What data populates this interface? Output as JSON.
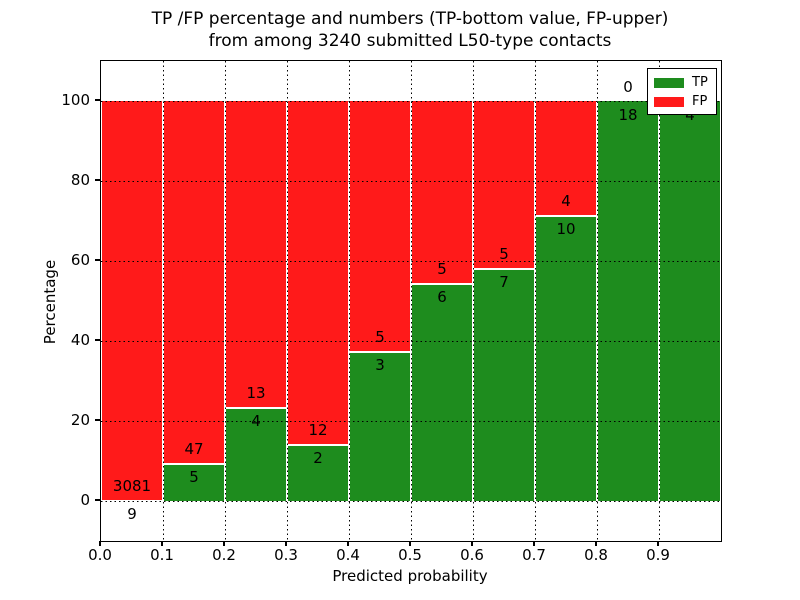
{
  "title": {
    "line1": "TP /FP percentage and numbers (TP-bottom value, FP-upper)",
    "line2": "from among 3240 submitted L50-type contacts"
  },
  "axes": {
    "ylabel": "Percentage",
    "xlabel": "Predicted probability",
    "ytick_labels": [
      "0",
      "20",
      "40",
      "60",
      "80",
      "100"
    ],
    "xtick_labels": [
      "0.0",
      "0.1",
      "0.2",
      "0.3",
      "0.4",
      "0.5",
      "0.6",
      "0.7",
      "0.8",
      "0.9"
    ]
  },
  "legend": [
    {
      "label": "TP",
      "color": "#1E8C1E"
    },
    {
      "label": "FP",
      "color": "#FF1A1A"
    }
  ],
  "colors": {
    "tp": "#1E8C1E",
    "fp": "#FF1A1A",
    "grid": "#000000",
    "background": "#ffffff"
  },
  "chart_data": {
    "type": "bar",
    "stacked": true,
    "title": "TP /FP percentage and numbers (TP-bottom value, FP-upper) from among 3240 submitted L50-type contacts",
    "xlabel": "Predicted probability",
    "ylabel": "Percentage",
    "total_submitted": 3240,
    "xlim": [
      0.0,
      1.0
    ],
    "ylim": [
      -10,
      110
    ],
    "grid": true,
    "legend_position": "upper right",
    "yticks": [
      0,
      20,
      40,
      60,
      80,
      100
    ],
    "xticks": [
      0.0,
      0.1,
      0.2,
      0.3,
      0.4,
      0.5,
      0.6,
      0.7,
      0.8,
      0.9
    ],
    "bins": [
      [
        0.0,
        0.1
      ],
      [
        0.1,
        0.2
      ],
      [
        0.2,
        0.3
      ],
      [
        0.3,
        0.4
      ],
      [
        0.4,
        0.5
      ],
      [
        0.5,
        0.6
      ],
      [
        0.6,
        0.7
      ],
      [
        0.7,
        0.8
      ],
      [
        0.8,
        0.9
      ],
      [
        0.9,
        1.0
      ]
    ],
    "series": [
      {
        "name": "TP",
        "color": "#1E8C1E",
        "counts": [
          9,
          5,
          4,
          2,
          3,
          6,
          7,
          10,
          18,
          4
        ],
        "pct": [
          0.29,
          9.62,
          23.53,
          14.29,
          37.5,
          54.55,
          58.33,
          71.43,
          100,
          100
        ]
      },
      {
        "name": "FP",
        "color": "#FF1A1A",
        "counts": [
          3081,
          47,
          13,
          12,
          5,
          5,
          5,
          4,
          0,
          0
        ],
        "pct": [
          99.71,
          90.38,
          76.47,
          85.71,
          62.5,
          45.45,
          41.67,
          28.57,
          0,
          0
        ]
      }
    ],
    "annotations": {
      "fp_labels": [
        "3081",
        "47",
        "13",
        "12",
        "5",
        "5",
        "5",
        "4",
        "0",
        ""
      ],
      "tp_labels": [
        "9",
        "5",
        "4",
        "2",
        "3",
        "6",
        "7",
        "10",
        "18",
        "4"
      ]
    }
  }
}
